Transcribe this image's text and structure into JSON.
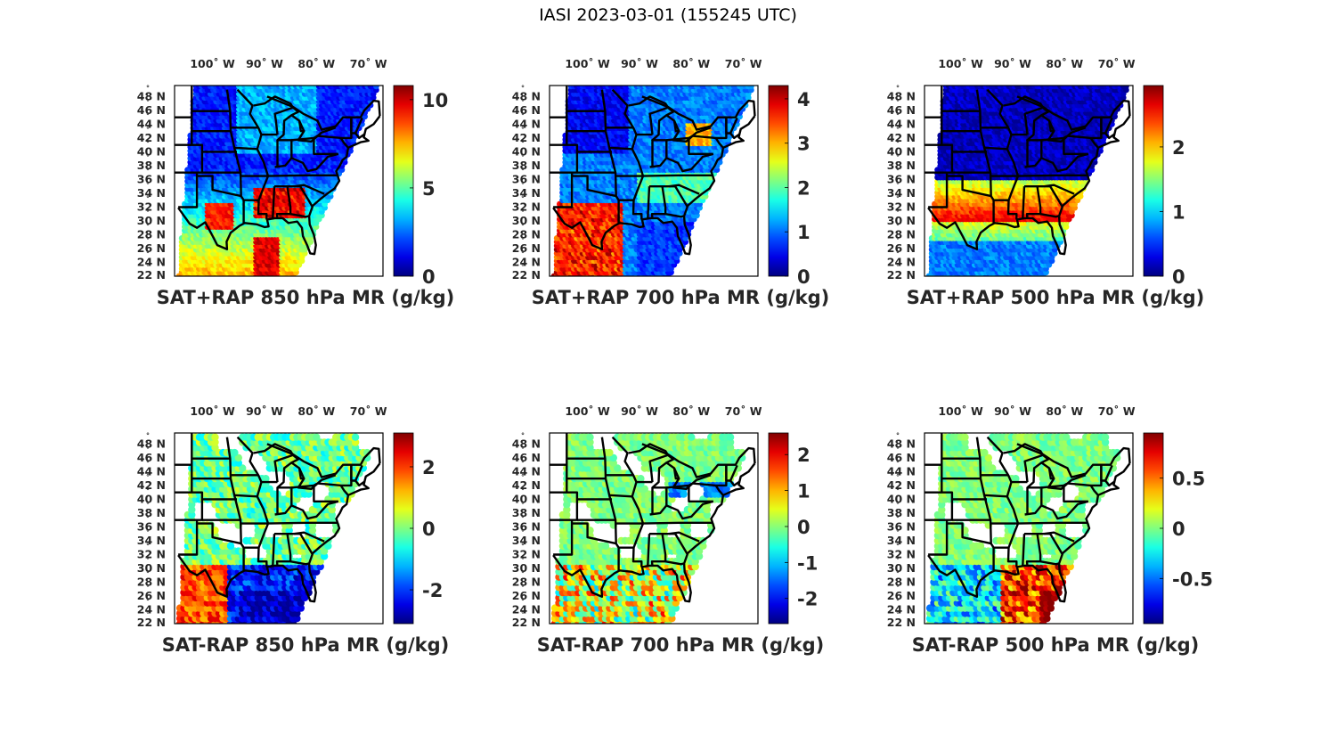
{
  "figure": {
    "title": "IASI 2023-03-01 (155245 UTC)"
  },
  "chart_data": [
    {
      "type": "heatmap",
      "panel": "top-left",
      "title": "SAT+RAP 850 hPa MR (g/kg)",
      "xticks": [
        "100° W",
        "90° W",
        "80° W",
        "70° W"
      ],
      "yticks": [
        "48° N",
        "46° N",
        "44° N",
        "42° N",
        "40° N",
        "38° N",
        "36° N",
        "34° N",
        "32° N",
        "30° N",
        "28° N",
        "26° N",
        "24° N",
        "22° N"
      ],
      "colorbar": {
        "range": [
          0,
          10.8
        ],
        "ticks": [
          0,
          5,
          10
        ],
        "colormap": "jet"
      },
      "description": "Swath of mixing ratio; low (blue ~1-2) over northern plains/Great Lakes, high (red ~9-10) over Gulf Coast states and Gulf of Mexico"
    },
    {
      "type": "heatmap",
      "panel": "top-middle",
      "title": "SAT+RAP 700 hPa MR (g/kg)",
      "xticks": [
        "100° W",
        "90° W",
        "80° W",
        "70° W"
      ],
      "yticks": [
        "48° N",
        "46° N",
        "44° N",
        "42° N",
        "40° N",
        "38° N",
        "36° N",
        "34° N",
        "32° N",
        "30° N",
        "28° N",
        "26° N",
        "24° N",
        "22° N"
      ],
      "colorbar": {
        "range": [
          0,
          4.3
        ],
        "ticks": [
          0,
          1,
          2,
          3,
          4
        ],
        "colormap": "jet"
      },
      "description": "Low (blue) over central plains, high (red ~4) over Texas and western Gulf"
    },
    {
      "type": "heatmap",
      "panel": "top-right",
      "title": "SAT+RAP 500 hPa MR (g/kg)",
      "xticks": [
        "100° W",
        "90° W",
        "80° W",
        "70° W"
      ],
      "yticks": [
        "48° N",
        "46° N",
        "44° N",
        "42° N",
        "40° N",
        "38° N",
        "36° N",
        "34° N",
        "32° N",
        "30° N",
        "28° N",
        "26° N",
        "24° N",
        "22° N"
      ],
      "colorbar": {
        "range": [
          0,
          2.95
        ],
        "ticks": [
          0,
          1,
          2
        ],
        "colormap": "jet"
      },
      "description": "Dark blue (~0.1) north of 36N, orange/red band (~2.5) across southern states near 30-34N"
    },
    {
      "type": "heatmap",
      "panel": "bottom-left",
      "title": "SAT-RAP 850 hPa MR (g/kg)",
      "xticks": [
        "100° W",
        "90° W",
        "80° W",
        "70° W"
      ],
      "yticks": [
        "48° N",
        "46° N",
        "44° N",
        "42° N",
        "40° N",
        "38° N",
        "36° N",
        "34° N",
        "32° N",
        "30° N",
        "28° N",
        "26° N",
        "24° N",
        "22° N"
      ],
      "colorbar": {
        "range": [
          -3.1,
          3.1
        ],
        "ticks": [
          -2,
          0,
          2
        ],
        "colormap": "jet"
      },
      "description": "Differences mostly near -0.5 to 0 over north; strong negative (~-3) over Gulf; positive (~2.5) over south Texas"
    },
    {
      "type": "heatmap",
      "panel": "bottom-middle",
      "title": "SAT-RAP 700 hPa MR (g/kg)",
      "xticks": [
        "100° W",
        "90° W",
        "80° W",
        "70° W"
      ],
      "yticks": [
        "48° N",
        "46° N",
        "44° N",
        "42° N",
        "40° N",
        "38° N",
        "36° N",
        "34° N",
        "32° N",
        "30° N",
        "28° N",
        "26° N",
        "24° N",
        "22° N"
      ],
      "colorbar": {
        "range": [
          -2.7,
          2.6
        ],
        "ticks": [
          -2,
          -1,
          0,
          1,
          2
        ],
        "colormap": "jet"
      },
      "description": "Near 0 over north, mixed positive/negative over Gulf"
    },
    {
      "type": "heatmap",
      "panel": "bottom-right",
      "title": "SAT-RAP 500 hPa MR (g/kg)",
      "xticks": [
        "100° W",
        "90° W",
        "80° W",
        "70° W"
      ],
      "yticks": [
        "48° N",
        "46° N",
        "44° N",
        "42° N",
        "40° N",
        "38° N",
        "36° N",
        "34° N",
        "32° N",
        "30° N",
        "28° N",
        "26° N",
        "24° N",
        "22° N"
      ],
      "colorbar": {
        "range": [
          -0.95,
          0.95
        ],
        "ticks": [
          -0.5,
          0,
          0.5
        ],
        "colormap": "jet"
      },
      "description": "Near 0 over north, strong positive (~0.9) over eastern Gulf, negative (~-0.8) over western Gulf/Texas"
    }
  ]
}
